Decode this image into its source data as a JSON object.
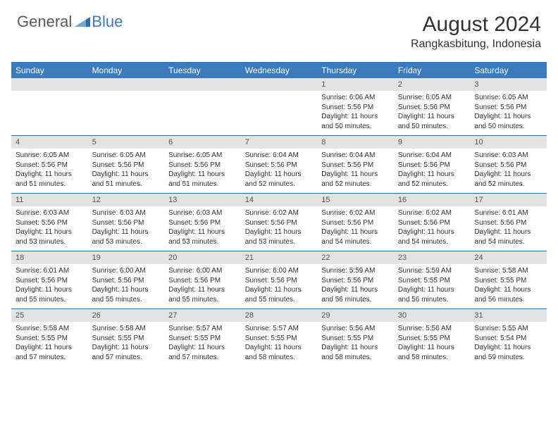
{
  "logo": {
    "text1": "General",
    "text2": "Blue"
  },
  "title": "August 2024",
  "location": "Rangkasbitung, Indonesia",
  "colors": {
    "header_bg": "#3a7abd",
    "header_text": "#ffffff",
    "numrow_bg": "#e3e3e3",
    "border": "#2f6fa8",
    "body_text": "#333333",
    "logo_gray": "#5a5a5a",
    "logo_blue": "#3a7abd"
  },
  "day_names": [
    "Sunday",
    "Monday",
    "Tuesday",
    "Wednesday",
    "Thursday",
    "Friday",
    "Saturday"
  ],
  "weeks": [
    {
      "nums": [
        "",
        "",
        "",
        "",
        "1",
        "2",
        "3"
      ],
      "details": [
        [],
        [],
        [],
        [],
        [
          "Sunrise: 6:06 AM",
          "Sunset: 5:56 PM",
          "Daylight: 11 hours",
          "and 50 minutes."
        ],
        [
          "Sunrise: 6:05 AM",
          "Sunset: 5:56 PM",
          "Daylight: 11 hours",
          "and 50 minutes."
        ],
        [
          "Sunrise: 6:05 AM",
          "Sunset: 5:56 PM",
          "Daylight: 11 hours",
          "and 50 minutes."
        ]
      ]
    },
    {
      "nums": [
        "4",
        "5",
        "6",
        "7",
        "8",
        "9",
        "10"
      ],
      "details": [
        [
          "Sunrise: 6:05 AM",
          "Sunset: 5:56 PM",
          "Daylight: 11 hours",
          "and 51 minutes."
        ],
        [
          "Sunrise: 6:05 AM",
          "Sunset: 5:56 PM",
          "Daylight: 11 hours",
          "and 51 minutes."
        ],
        [
          "Sunrise: 6:05 AM",
          "Sunset: 5:56 PM",
          "Daylight: 11 hours",
          "and 51 minutes."
        ],
        [
          "Sunrise: 6:04 AM",
          "Sunset: 5:56 PM",
          "Daylight: 11 hours",
          "and 52 minutes."
        ],
        [
          "Sunrise: 6:04 AM",
          "Sunset: 5:56 PM",
          "Daylight: 11 hours",
          "and 52 minutes."
        ],
        [
          "Sunrise: 6:04 AM",
          "Sunset: 5:56 PM",
          "Daylight: 11 hours",
          "and 52 minutes."
        ],
        [
          "Sunrise: 6:03 AM",
          "Sunset: 5:56 PM",
          "Daylight: 11 hours",
          "and 52 minutes."
        ]
      ]
    },
    {
      "nums": [
        "11",
        "12",
        "13",
        "14",
        "15",
        "16",
        "17"
      ],
      "details": [
        [
          "Sunrise: 6:03 AM",
          "Sunset: 5:56 PM",
          "Daylight: 11 hours",
          "and 53 minutes."
        ],
        [
          "Sunrise: 6:03 AM",
          "Sunset: 5:56 PM",
          "Daylight: 11 hours",
          "and 53 minutes."
        ],
        [
          "Sunrise: 6:03 AM",
          "Sunset: 5:56 PM",
          "Daylight: 11 hours",
          "and 53 minutes."
        ],
        [
          "Sunrise: 6:02 AM",
          "Sunset: 5:56 PM",
          "Daylight: 11 hours",
          "and 53 minutes."
        ],
        [
          "Sunrise: 6:02 AM",
          "Sunset: 5:56 PM",
          "Daylight: 11 hours",
          "and 54 minutes."
        ],
        [
          "Sunrise: 6:02 AM",
          "Sunset: 5:56 PM",
          "Daylight: 11 hours",
          "and 54 minutes."
        ],
        [
          "Sunrise: 6:01 AM",
          "Sunset: 5:56 PM",
          "Daylight: 11 hours",
          "and 54 minutes."
        ]
      ]
    },
    {
      "nums": [
        "18",
        "19",
        "20",
        "21",
        "22",
        "23",
        "24"
      ],
      "details": [
        [
          "Sunrise: 6:01 AM",
          "Sunset: 5:56 PM",
          "Daylight: 11 hours",
          "and 55 minutes."
        ],
        [
          "Sunrise: 6:00 AM",
          "Sunset: 5:56 PM",
          "Daylight: 11 hours",
          "and 55 minutes."
        ],
        [
          "Sunrise: 6:00 AM",
          "Sunset: 5:56 PM",
          "Daylight: 11 hours",
          "and 55 minutes."
        ],
        [
          "Sunrise: 6:00 AM",
          "Sunset: 5:56 PM",
          "Daylight: 11 hours",
          "and 55 minutes."
        ],
        [
          "Sunrise: 5:59 AM",
          "Sunset: 5:56 PM",
          "Daylight: 11 hours",
          "and 56 minutes."
        ],
        [
          "Sunrise: 5:59 AM",
          "Sunset: 5:55 PM",
          "Daylight: 11 hours",
          "and 56 minutes."
        ],
        [
          "Sunrise: 5:58 AM",
          "Sunset: 5:55 PM",
          "Daylight: 11 hours",
          "and 56 minutes."
        ]
      ]
    },
    {
      "nums": [
        "25",
        "26",
        "27",
        "28",
        "29",
        "30",
        "31"
      ],
      "details": [
        [
          "Sunrise: 5:58 AM",
          "Sunset: 5:55 PM",
          "Daylight: 11 hours",
          "and 57 minutes."
        ],
        [
          "Sunrise: 5:58 AM",
          "Sunset: 5:55 PM",
          "Daylight: 11 hours",
          "and 57 minutes."
        ],
        [
          "Sunrise: 5:57 AM",
          "Sunset: 5:55 PM",
          "Daylight: 11 hours",
          "and 57 minutes."
        ],
        [
          "Sunrise: 5:57 AM",
          "Sunset: 5:55 PM",
          "Daylight: 11 hours",
          "and 58 minutes."
        ],
        [
          "Sunrise: 5:56 AM",
          "Sunset: 5:55 PM",
          "Daylight: 11 hours",
          "and 58 minutes."
        ],
        [
          "Sunrise: 5:56 AM",
          "Sunset: 5:55 PM",
          "Daylight: 11 hours",
          "and 58 minutes."
        ],
        [
          "Sunrise: 5:55 AM",
          "Sunset: 5:54 PM",
          "Daylight: 11 hours",
          "and 59 minutes."
        ]
      ]
    }
  ]
}
